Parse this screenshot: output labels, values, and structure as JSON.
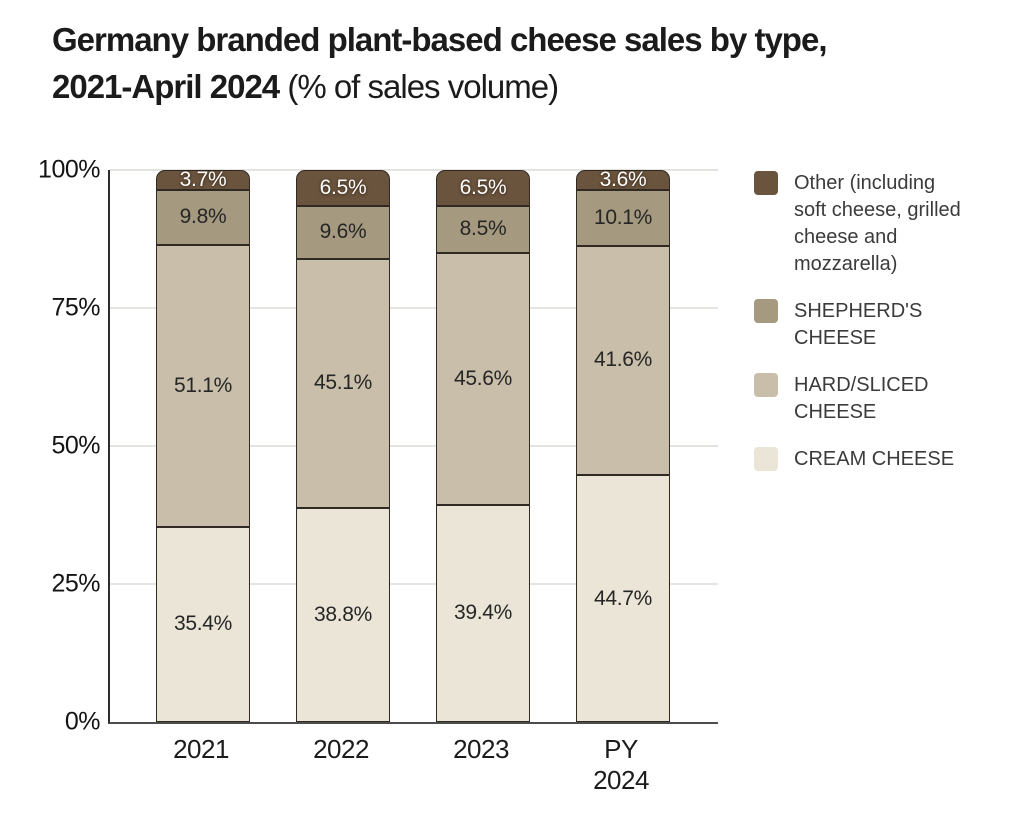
{
  "title": {
    "line1_bold": "Germany branded plant-based cheese sales by type,",
    "line2_bold": "2021-April 2024",
    "line2_regular": " (% of sales volume)"
  },
  "colors": {
    "other": "#6B543E",
    "shepherds_cheese": "#A5997F",
    "hard_sliced_cheese": "#C8BEA9",
    "cream_cheese": "#EAE5D6",
    "gridline": "#E6E4E0",
    "axis": "#2E2E2E",
    "text": "#1B1B1B"
  },
  "chart_data": {
    "type": "bar",
    "stacked": true,
    "title": "Germany branded plant-based cheese sales by type, 2021-April 2024 (% of sales volume)",
    "categories": [
      "2021",
      "2022",
      "2023",
      "PY 2024"
    ],
    "series": [
      {
        "name": "CREAM CHEESE",
        "color": "#EAE5D6",
        "label_style": "dark",
        "values": [
          35.4,
          38.8,
          39.4,
          44.7
        ]
      },
      {
        "name": "HARD/SLICED CHEESE",
        "color": "#C8BEA9",
        "label_style": "dark",
        "values": [
          51.1,
          45.1,
          45.6,
          41.6
        ]
      },
      {
        "name": "SHEPHERD'S CHEESE",
        "color": "#A5997F",
        "label_style": "dark",
        "values": [
          9.8,
          9.6,
          8.5,
          10.1
        ]
      },
      {
        "name": "Other (including soft cheese, grilled cheese and mozzarella)",
        "color": "#6B543E",
        "label_style": "light",
        "values": [
          3.7,
          6.5,
          6.5,
          3.6
        ]
      }
    ],
    "yticks": [
      "0%",
      "25%",
      "50%",
      "75%",
      "100%"
    ],
    "ylim": [
      0,
      100
    ],
    "grid": true,
    "value_suffix": "%",
    "legend_position": "right",
    "legend": [
      {
        "label": "Other (including\nsoft cheese, grilled\ncheese and\nmozzarella)",
        "color": "#6B543E"
      },
      {
        "label": "SHEPHERD'S\nCHEESE",
        "color": "#A5997F"
      },
      {
        "label": "HARD/SLICED\nCHEESE",
        "color": "#C8BEA9"
      },
      {
        "label": "CREAM CHEESE",
        "color": "#EAE5D6"
      }
    ]
  }
}
